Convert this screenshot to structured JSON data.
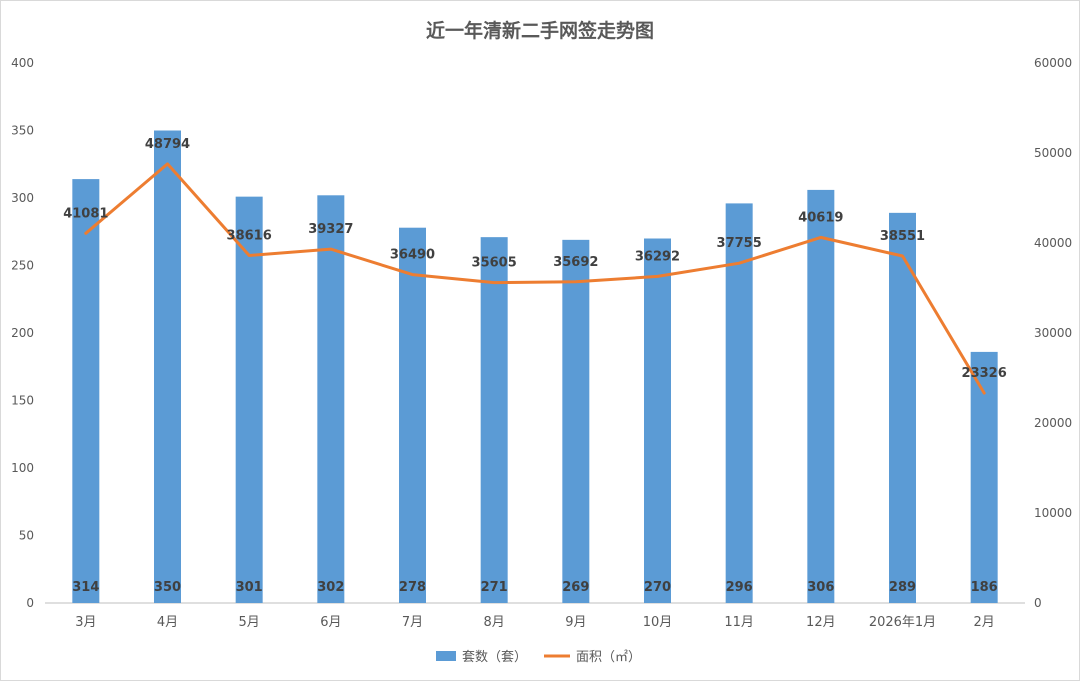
{
  "chart_data": {
    "type": "bar",
    "title": "近一年清新二手网签走势图",
    "categories": [
      "3月",
      "4月",
      "5月",
      "6月",
      "7月",
      "8月",
      "9月",
      "10月",
      "11月",
      "12月",
      "2026年1月",
      "2月"
    ],
    "series": [
      {
        "name": "套数（套）",
        "type": "bar",
        "axis": "left",
        "color": "#5b9bd5",
        "values": [
          314,
          350,
          301,
          302,
          278,
          271,
          269,
          270,
          296,
          306,
          289,
          186
        ]
      },
      {
        "name": "面积（㎡）",
        "type": "line",
        "axis": "right",
        "color": "#ed7d31",
        "values": [
          41081,
          48794,
          38616,
          39327,
          36490,
          35605,
          35692,
          36292,
          37755,
          40619,
          38551,
          23326
        ]
      }
    ],
    "y_left": {
      "min": 0,
      "max": 400,
      "ticks": [
        0,
        50,
        100,
        150,
        200,
        250,
        300,
        350,
        400
      ]
    },
    "y_right": {
      "min": 0,
      "max": 60000,
      "ticks": [
        0,
        10000,
        20000,
        30000,
        40000,
        50000,
        60000
      ]
    },
    "grid": false,
    "legend": "bottom",
    "data_labels": true
  }
}
